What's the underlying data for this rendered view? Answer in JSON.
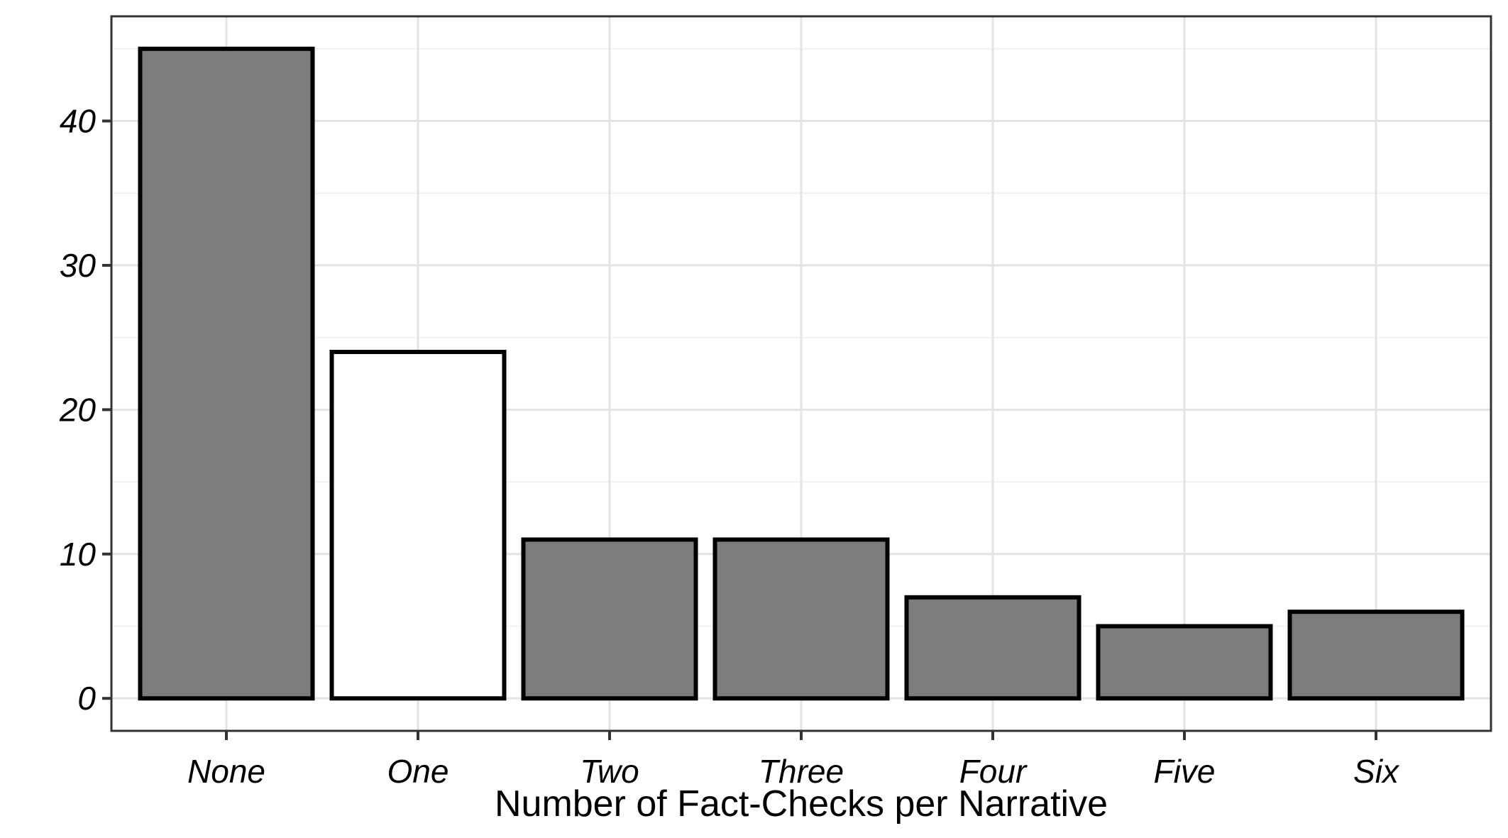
{
  "chart_data": {
    "type": "bar",
    "categories": [
      "None",
      "One",
      "Two",
      "Three",
      "Four",
      "Five",
      "Six"
    ],
    "values": [
      45,
      24,
      11,
      11,
      7,
      5,
      6
    ],
    "title": "",
    "xlabel": "Number of Fact-Checks per Narrative",
    "ylabel": "",
    "ylim": [
      0,
      45
    ],
    "yticks_major": [
      0,
      10,
      20,
      30,
      40
    ],
    "yticks_minor": [
      5,
      15,
      25,
      35,
      45
    ],
    "grid": "horizontal major+minor gridlines; vertical major gridlines at category centers; drawn behind bars",
    "legend_position": "none",
    "bar_fill_colors": [
      "#7d7d7d",
      "#ffffff",
      "#7d7d7d",
      "#7d7d7d",
      "#7d7d7d",
      "#7d7d7d",
      "#7d7d7d"
    ],
    "bar_stroke_color": "#000000"
  },
  "colors": {
    "background": "#ffffff",
    "panel_background": "#ffffff",
    "panel_border": "#333333",
    "tick_mark": "#333333",
    "grid_major": "#e3e3e3",
    "grid_minor": "#f0f0f0",
    "text": "#000000",
    "bar_gray": "#7d7d7d",
    "bar_white": "#ffffff"
  }
}
